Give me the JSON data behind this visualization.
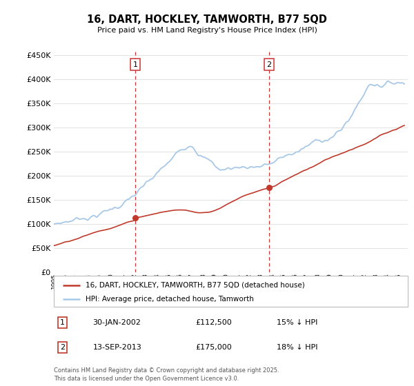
{
  "title": "16, DART, HOCKLEY, TAMWORTH, B77 5QD",
  "subtitle": "Price paid vs. HM Land Registry's House Price Index (HPI)",
  "ylim": [
    0,
    460000
  ],
  "yticks": [
    0,
    50000,
    100000,
    150000,
    200000,
    250000,
    300000,
    350000,
    400000,
    450000
  ],
  "hpi_color": "#a8c8e8",
  "price_color": "#c0392b",
  "vline_color": "#cc3333",
  "grid_color": "#dddddd",
  "purchase1": {
    "price": 112500,
    "x_year": 2002.08
  },
  "purchase2": {
    "price": 175000,
    "x_year": 2013.71
  },
  "legend_label_price": "16, DART, HOCKLEY, TAMWORTH, B77 5QD (detached house)",
  "legend_label_hpi": "HPI: Average price, detached house, Tamworth",
  "footnote": "Contains HM Land Registry data © Crown copyright and database right 2025.\nThis data is licensed under the Open Government Licence v3.0.",
  "table_rows": [
    [
      "1",
      "30-JAN-2002",
      "£112,500",
      "15% ↓ HPI"
    ],
    [
      "2",
      "13-SEP-2013",
      "£175,000",
      "18% ↓ HPI"
    ]
  ],
  "xlim_start": 1995.0,
  "xlim_end": 2025.8
}
